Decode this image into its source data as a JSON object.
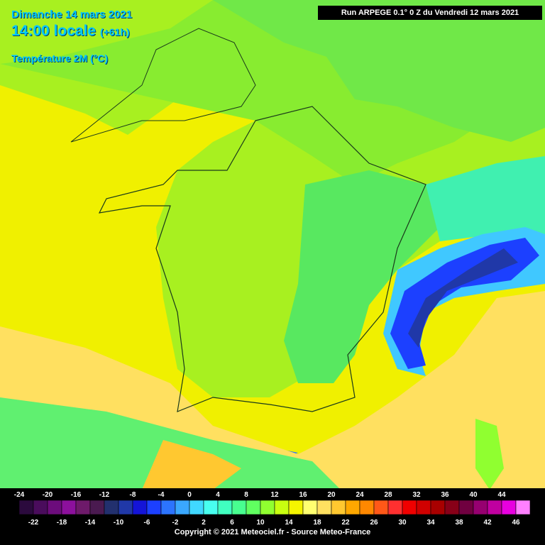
{
  "header": {
    "date": "Dimanche 14 mars 2021",
    "time": "14:00 locale",
    "offset": "(+61h)",
    "variable": "Température 2M (°C)"
  },
  "run": "Run ARPEGE 0.1° 0 Z du Vendredi 12 mars 2021",
  "legend": {
    "labels": [
      -24,
      -22,
      -20,
      -18,
      -16,
      -14,
      -12,
      -10,
      -8,
      -6,
      -4,
      -2,
      0,
      2,
      4,
      6,
      8,
      10,
      12,
      14,
      16,
      18,
      20,
      22,
      24,
      26,
      28,
      30,
      32,
      34,
      36,
      38,
      40,
      42,
      44,
      46
    ],
    "colors": [
      "#2b0a3d",
      "#4a0c5c",
      "#6c0c7c",
      "#8c109c",
      "#6e1a6a",
      "#4a1a50",
      "#22306e",
      "#2038a8",
      "#1414d8",
      "#1c40ff",
      "#2c74ff",
      "#3aa8ff",
      "#40d8ff",
      "#48fff0",
      "#40ffc0",
      "#48ff90",
      "#60ff60",
      "#90ff30",
      "#c8ff10",
      "#f4f400",
      "#ffff70",
      "#ffe060",
      "#ffc830",
      "#ffa800",
      "#ff8800",
      "#ff5818",
      "#ff3030",
      "#f00000",
      "#d00000",
      "#a80000",
      "#880018",
      "#700040",
      "#960070",
      "#c000a0",
      "#e800e0",
      "#ff80ff"
    ]
  },
  "copyright": "Copyright © 2021 Meteociel.fr - Source Meteo-France"
}
